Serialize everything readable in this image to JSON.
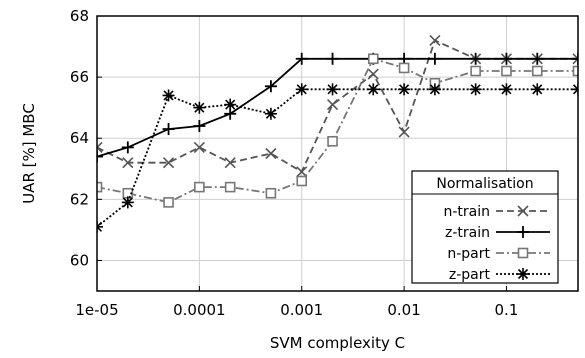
{
  "chart_data": {
    "type": "line",
    "xlabel": "SVM complexity C",
    "ylabel": "UAR [%] MBC",
    "xscale": "log",
    "xlim": [
      1e-05,
      0.5
    ],
    "ylim": [
      59,
      68
    ],
    "x_ticks": [
      1e-05,
      0.0001,
      0.001,
      0.01,
      0.1
    ],
    "x_tick_labels": [
      "1e-05",
      "0.0001",
      "0.001",
      "0.01",
      "0.1"
    ],
    "y_ticks": [
      60,
      62,
      64,
      66,
      68
    ],
    "y_tick_labels": [
      "60",
      "62",
      "64",
      "66",
      "68"
    ],
    "grid": true,
    "legend": {
      "title": "Normalisation",
      "position": "bottom-right"
    },
    "x": [
      1e-05,
      2e-05,
      5e-05,
      0.0001,
      0.0002,
      0.0005,
      0.001,
      0.002,
      0.005,
      0.01,
      0.02,
      0.05,
      0.1,
      0.2,
      0.5
    ],
    "series": [
      {
        "name": "n-train",
        "color": "#555555",
        "dash": "dashed",
        "marker": "x",
        "values": [
          63.7,
          63.2,
          63.2,
          63.7,
          63.2,
          63.5,
          62.9,
          65.1,
          66.1,
          64.2,
          67.2,
          66.6,
          66.6,
          66.6,
          66.6
        ]
      },
      {
        "name": "z-train",
        "color": "#000000",
        "dash": "solid",
        "marker": "plus",
        "values": [
          63.4,
          63.7,
          64.3,
          64.4,
          64.8,
          65.7,
          66.6,
          66.6,
          66.6,
          66.6,
          66.6,
          66.6,
          66.6,
          66.6,
          66.6
        ]
      },
      {
        "name": "n-part",
        "color": "#777777",
        "dash": "dashdot",
        "marker": "square",
        "values": [
          62.4,
          62.2,
          61.9,
          62.4,
          62.4,
          62.2,
          62.6,
          63.9,
          66.6,
          66.3,
          65.8,
          66.2,
          66.2,
          66.2,
          66.2
        ]
      },
      {
        "name": "z-part",
        "color": "#000000",
        "dash": "dotted",
        "marker": "asterisk",
        "values": [
          61.1,
          61.9,
          65.4,
          65.0,
          65.1,
          64.8,
          65.6,
          65.6,
          65.6,
          65.6,
          65.6,
          65.6,
          65.6,
          65.6,
          65.6
        ]
      }
    ]
  }
}
